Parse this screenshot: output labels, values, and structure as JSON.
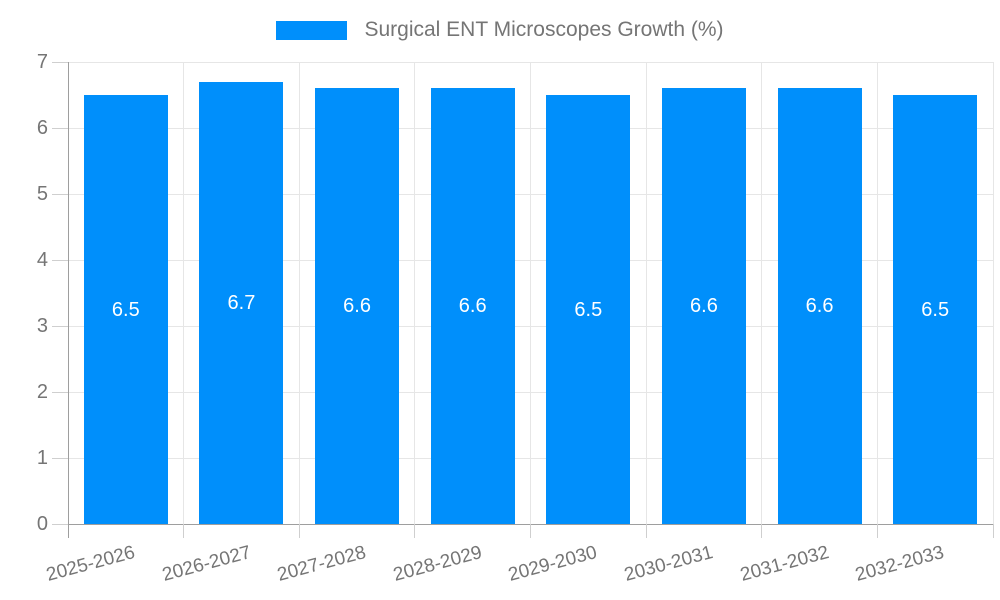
{
  "chart_data": {
    "type": "bar",
    "title": "Surgical ENT Microscopes Growth (%)",
    "categories": [
      "2025-2026",
      "2026-2027",
      "2027-2028",
      "2028-2029",
      "2029-2030",
      "2030-2031",
      "2031-2032",
      "2032-2033"
    ],
    "values": [
      6.5,
      6.7,
      6.6,
      6.6,
      6.5,
      6.6,
      6.6,
      6.5
    ],
    "value_labels": [
      "6.5",
      "6.7",
      "6.6",
      "6.6",
      "6.5",
      "6.6",
      "6.6",
      "6.5"
    ],
    "xlabel": "",
    "ylabel": "",
    "ylim": [
      0,
      7
    ],
    "yticks": [
      0,
      1,
      2,
      3,
      4,
      5,
      6,
      7
    ],
    "grid": true,
    "legend_position": "top",
    "x_label_rotation_deg": -15,
    "colors": {
      "bar": "#008FFB",
      "axis": "#9E9E9E",
      "grid": "#E6E6E6",
      "tick": "#CFCFCF",
      "axis_label": "#757575",
      "value_label": "#FFFFFF",
      "background": "#FFFFFF"
    }
  }
}
